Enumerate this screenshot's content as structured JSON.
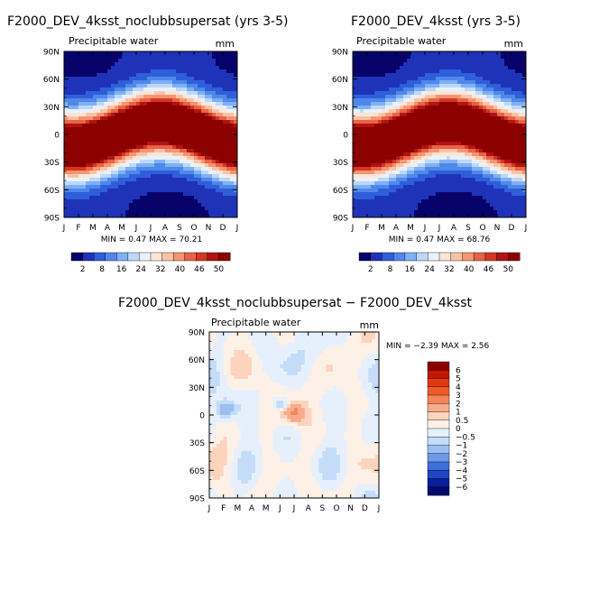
{
  "chart_data": [
    {
      "type": "heatmap",
      "title": "F2000_DEV_4ksst_noclubbsupersat (yrs 3-5)",
      "subtitle_left": "Precipitable water",
      "subtitle_right": "mm",
      "x_tick_labels": [
        "J",
        "F",
        "M",
        "A",
        "M",
        "J",
        "J",
        "A",
        "S",
        "O",
        "N",
        "D",
        "J"
      ],
      "y_tick_labels": [
        "90N",
        "60N",
        "30N",
        "0",
        "30S",
        "60S",
        "90S"
      ],
      "ylim": [
        -90,
        90
      ],
      "stats": "MIN =    0.47  MAX =   70.21",
      "colorbar_labels": [
        "2",
        "8",
        "16",
        "24",
        "32",
        "40",
        "46",
        "50"
      ],
      "colorbar_colors": [
        "#08036b",
        "#1f33b8",
        "#2f5fd8",
        "#4f88ea",
        "#7fb0f4",
        "#bcd8f8",
        "#e8f2fc",
        "#fde6d8",
        "#fbc3a6",
        "#f59571",
        "#ea6346",
        "#d63622",
        "#b01410",
        "#8c0000"
      ],
      "z_max": 70.21
    },
    {
      "type": "heatmap",
      "title": "F2000_DEV_4ksst (yrs 3-5)",
      "subtitle_left": "Precipitable water",
      "subtitle_right": "mm",
      "x_tick_labels": [
        "J",
        "F",
        "M",
        "A",
        "M",
        "J",
        "J",
        "A",
        "S",
        "O",
        "N",
        "D",
        "J"
      ],
      "y_tick_labels": [
        "90N",
        "60N",
        "30N",
        "0",
        "30S",
        "60S",
        "90S"
      ],
      "ylim": [
        -90,
        90
      ],
      "stats": "MIN =    0.47  MAX =   68.76",
      "colorbar_labels": [
        "2",
        "8",
        "16",
        "24",
        "32",
        "40",
        "46",
        "50"
      ],
      "colorbar_colors": [
        "#08036b",
        "#1f33b8",
        "#2f5fd8",
        "#4f88ea",
        "#7fb0f4",
        "#bcd8f8",
        "#e8f2fc",
        "#fde6d8",
        "#fbc3a6",
        "#f59571",
        "#ea6346",
        "#d63622",
        "#b01410",
        "#8c0000"
      ],
      "z_max": 68.76
    },
    {
      "type": "heatmap",
      "title": "F2000_DEV_4ksst_noclubbsupersat − F2000_DEV_4ksst",
      "subtitle_left": "Precipitable water",
      "subtitle_right": "mm",
      "x_tick_labels": [
        "J",
        "F",
        "M",
        "A",
        "M",
        "J",
        "J",
        "A",
        "S",
        "O",
        "N",
        "D",
        "J"
      ],
      "y_tick_labels": [
        "90N",
        "60N",
        "30N",
        "0",
        "30S",
        "60S",
        "90S"
      ],
      "ylim": [
        -90,
        90
      ],
      "stats": "MIN =   −2.39  MAX =    2.56",
      "colorbar_labels": [
        "6",
        "5",
        "4",
        "3",
        "2",
        "1",
        "0.5",
        "0",
        "−0.5",
        "−1",
        "−2",
        "−3",
        "−4",
        "−5",
        "−6"
      ],
      "colorbar_colors": [
        "#8c0000",
        "#c41608",
        "#e23a10",
        "#f05a28",
        "#f4855a",
        "#f8ac8c",
        "#fcd4bd",
        "#fdf0e6",
        "#e6f0fc",
        "#c4dcf8",
        "#9ac0f2",
        "#6a9ae8",
        "#3f6fda",
        "#1f44c4",
        "#0a1f9c",
        "#040a6b"
      ],
      "z_min": -2.39,
      "z_max": 2.56
    }
  ]
}
